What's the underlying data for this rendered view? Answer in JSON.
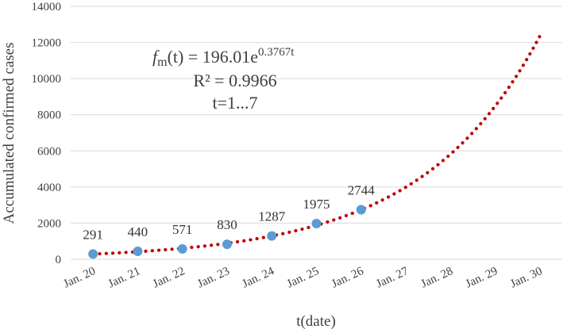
{
  "chart_data": {
    "type": "scatter",
    "title": "",
    "xlabel": "t(date)",
    "ylabel": "Accumulated confirmed cases",
    "categories": [
      "Jan. 20",
      "Jan. 21",
      "Jan. 22",
      "Jan. 23",
      "Jan. 24",
      "Jan. 25",
      "Jan. 26",
      "Jan. 27",
      "Jan. 28",
      "Jan. 29",
      "Jan. 30"
    ],
    "ylim": [
      0,
      14000
    ],
    "yticks": [
      "0",
      "2000",
      "4000",
      "6000",
      "8000",
      "10000",
      "12000",
      "14000"
    ],
    "grid": "horizontal",
    "series": [
      {
        "kind": "points",
        "color": "#5b9bd5",
        "x": [
          "Jan. 20",
          "Jan. 21",
          "Jan. 22",
          "Jan. 23",
          "Jan. 24",
          "Jan. 25",
          "Jan. 26"
        ],
        "values": [
          291,
          440,
          571,
          830,
          1287,
          1975,
          2744
        ],
        "labels": [
          "291",
          "440",
          "571",
          "830",
          "1287",
          "1975",
          "2744"
        ]
      },
      {
        "kind": "trendline",
        "style": "dotted",
        "color": "#c00000",
        "model": "exponential",
        "a": 196.01,
        "b": 0.3767,
        "x_range": [
          "Jan. 20",
          "Jan. 30"
        ]
      }
    ],
    "annotations": {
      "equation_func": "f",
      "equation_sub": "m",
      "equation_mid": "(t) = 196.01e",
      "equation_exp": "0.3767t",
      "r2": "R² = 0.9966",
      "range": "t=1...7"
    }
  }
}
